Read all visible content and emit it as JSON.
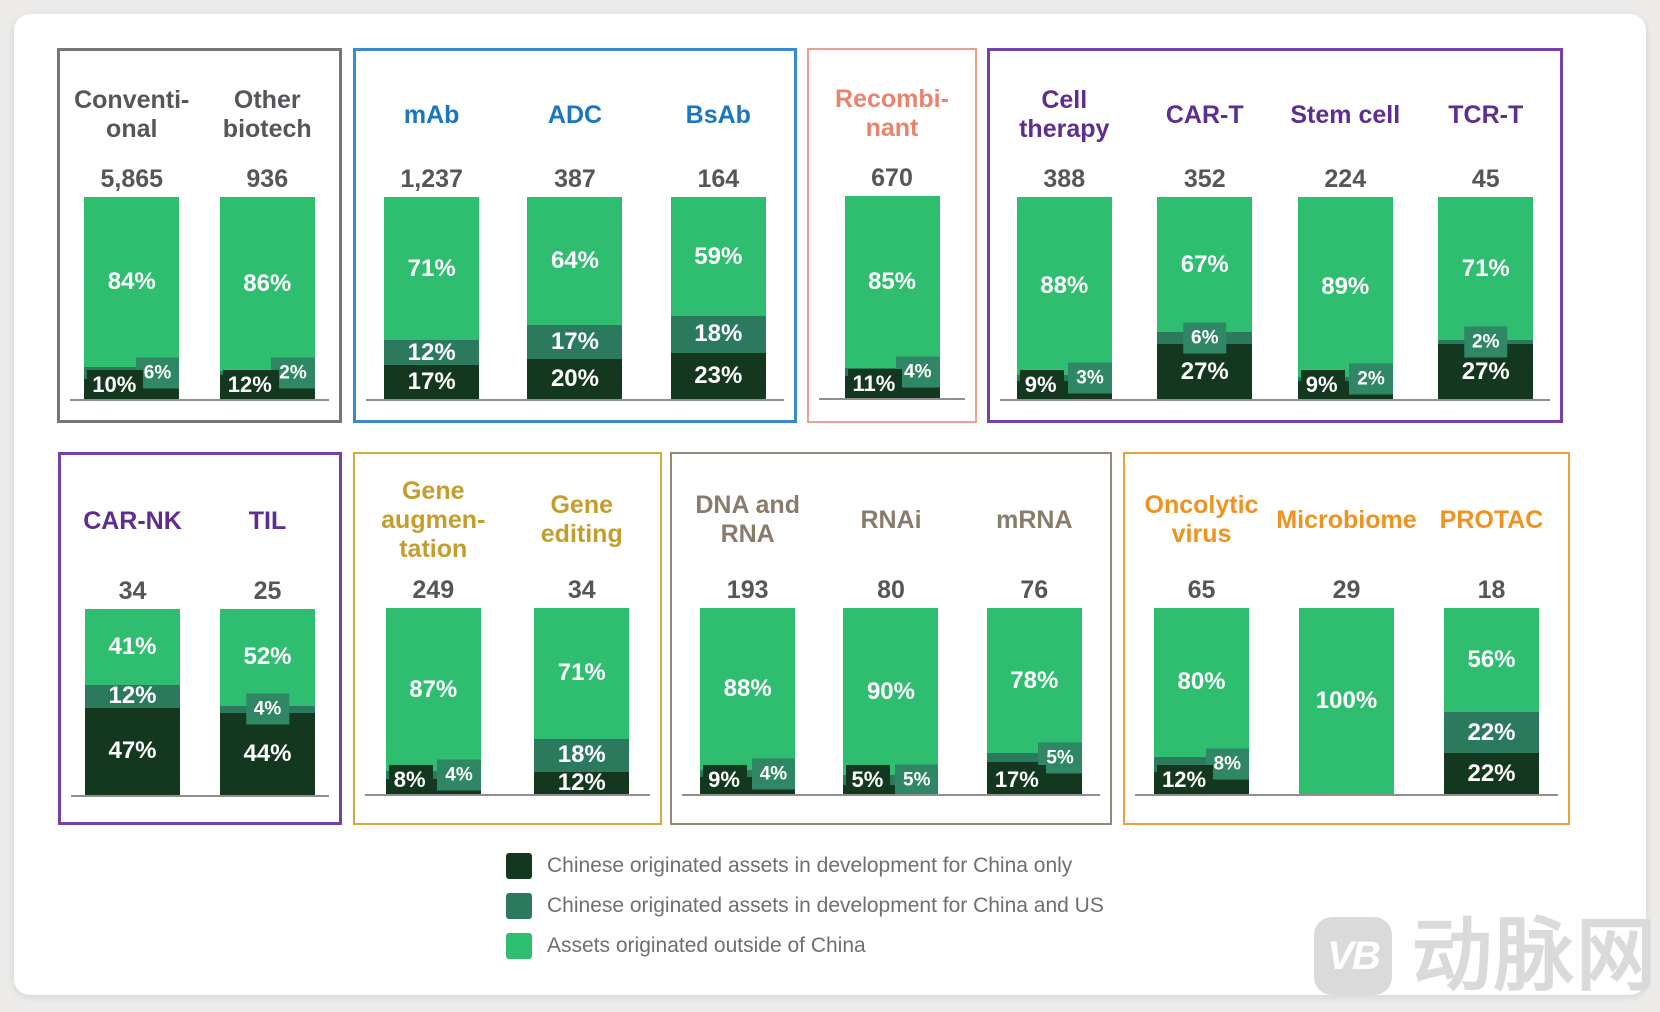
{
  "page": {
    "background": "#ECEBE9",
    "card_color": "#FFFFFF"
  },
  "legend": {
    "position": "bottom-left-of-center",
    "items": [
      {
        "series": "china_only",
        "label": "Chinese originated assets in development for China only",
        "color": "#14381F"
      },
      {
        "series": "china_and_us",
        "label": "Chinese originated assets in development for China and US",
        "color": "#2C7A5E"
      },
      {
        "series": "outside_china",
        "label": "Assets originated outside of China",
        "color": "#2FBE70"
      }
    ]
  },
  "watermark": {
    "logo_text": "VB",
    "brand_text": "动脉网"
  },
  "chart_data": {
    "type": "bar",
    "stacked": true,
    "unit": "percent",
    "value_suffix": "%",
    "note": "Each bar = 100% split across three series; number above bar = total asset count",
    "series": [
      {
        "key": "china_only",
        "label": "Chinese originated assets in development for China only",
        "color": "#14381F"
      },
      {
        "key": "china_and_us",
        "label": "Chinese originated assets in development for China and US",
        "color": "#2C7A5E"
      },
      {
        "key": "outside_china",
        "label": "Assets originated outside of China",
        "color": "#2FBE70"
      }
    ],
    "colors": {
      "light": "#2FBE70",
      "mid": "#2C7A5E",
      "dark": "#14381F",
      "chip_mid": "#2F8766"
    },
    "groups": [
      {
        "id": "conventional-other",
        "accent": "#55565A",
        "border": "#75767A",
        "bars": [
          {
            "title": [
              "Conventi-",
              "onal"
            ],
            "total": "5,865",
            "values": {
              "outside_china": 84,
              "china_and_us": 6,
              "china_only": 10
            },
            "mid_label": "chip",
            "dark_label": "corner"
          },
          {
            "title": [
              "Other",
              "biotech"
            ],
            "total": "936",
            "values": {
              "outside_china": 86,
              "china_and_us": 2,
              "china_only": 12
            },
            "mid_label": "chip",
            "dark_label": "corner"
          }
        ]
      },
      {
        "id": "antibodies",
        "accent": "#1B75C0",
        "border": "#3B88CB",
        "bars": [
          {
            "title": [
              "mAb"
            ],
            "total": "1,237",
            "values": {
              "outside_china": 71,
              "china_and_us": 12,
              "china_only": 17
            },
            "mid_label": "in",
            "dark_label": "in"
          },
          {
            "title": [
              "ADC"
            ],
            "total": "387",
            "values": {
              "outside_china": 64,
              "china_and_us": 17,
              "china_only": 20
            },
            "mid_label": "in",
            "dark_label": "in"
          },
          {
            "title": [
              "BsAb"
            ],
            "total": "164",
            "values": {
              "outside_china": 59,
              "china_and_us": 18,
              "china_only": 23
            },
            "mid_label": "in",
            "dark_label": "in"
          }
        ]
      },
      {
        "id": "recombinant",
        "accent": "#E8836E",
        "border": "#ECA18F",
        "bars": [
          {
            "title": [
              "Recombi-",
              "nant"
            ],
            "total": "670",
            "values": {
              "outside_china": 85,
              "china_and_us": 4,
              "china_only": 11
            },
            "mid_label": "chip",
            "dark_label": "corner"
          }
        ]
      },
      {
        "id": "cell-therapy",
        "accent": "#5E2D91",
        "border": "#7642A8",
        "bars": [
          {
            "title": [
              "Cell",
              "therapy"
            ],
            "total": "388",
            "values": {
              "outside_china": 88,
              "china_and_us": 3,
              "china_only": 9
            },
            "mid_label": "chip",
            "dark_label": "corner"
          },
          {
            "title": [
              "CAR-T"
            ],
            "total": "352",
            "values": {
              "outside_china": 67,
              "china_and_us": 6,
              "china_only": 27
            },
            "mid_label": "chip",
            "dark_label": "in"
          },
          {
            "title": [
              "Stem cell"
            ],
            "total": "224",
            "values": {
              "outside_china": 89,
              "china_and_us": 2,
              "china_only": 9
            },
            "mid_label": "chip",
            "dark_label": "corner"
          },
          {
            "title": [
              "TCR-T"
            ],
            "total": "45",
            "values": {
              "outside_china": 71,
              "china_and_us": 2,
              "china_only": 27
            },
            "mid_label": "chip",
            "dark_label": "in"
          }
        ]
      },
      {
        "id": "car-nk-til",
        "accent": "#5E2D91",
        "border": "#7642A8",
        "bars": [
          {
            "title": [
              "CAR-NK"
            ],
            "total": "34",
            "values": {
              "outside_china": 41,
              "china_and_us": 12,
              "china_only": 47
            },
            "mid_label": "in",
            "dark_label": "in"
          },
          {
            "title": [
              "TIL"
            ],
            "total": "25",
            "values": {
              "outside_china": 52,
              "china_and_us": 4,
              "china_only": 44
            },
            "mid_label": "chip",
            "dark_label": "in"
          }
        ]
      },
      {
        "id": "gene-therapy",
        "accent": "#C49D2A",
        "border": "#D2AC3B",
        "bars": [
          {
            "title": [
              "Gene",
              "augmen-",
              "tation"
            ],
            "total": "249",
            "values": {
              "outside_china": 87,
              "china_and_us": 4,
              "china_only": 8
            },
            "mid_label": "chip",
            "dark_label": "corner"
          },
          {
            "title": [
              "Gene",
              "editing"
            ],
            "total": "34",
            "values": {
              "outside_china": 71,
              "china_and_us": 18,
              "china_only": 12
            },
            "mid_label": "in",
            "dark_label": "in"
          }
        ]
      },
      {
        "id": "nucleic-acid",
        "accent": "#8A7C6C",
        "border": "#95897C",
        "bars": [
          {
            "title": [
              "DNA and",
              "RNA"
            ],
            "total": "193",
            "values": {
              "outside_china": 88,
              "china_and_us": 4,
              "china_only": 9
            },
            "mid_label": "chip",
            "dark_label": "corner"
          },
          {
            "title": [
              "RNAi"
            ],
            "total": "80",
            "values": {
              "outside_china": 90,
              "china_and_us": 5,
              "china_only": 5
            },
            "mid_label": "chip",
            "dark_label": "corner"
          },
          {
            "title": [
              "mRNA"
            ],
            "total": "76",
            "values": {
              "outside_china": 78,
              "china_and_us": 5,
              "china_only": 17
            },
            "mid_label": "chip",
            "dark_label": "corner"
          }
        ]
      },
      {
        "id": "other-modalities",
        "accent": "#F0921E",
        "border": "#EBA03F",
        "bars": [
          {
            "title": [
              "Oncolytic",
              "virus"
            ],
            "total": "65",
            "values": {
              "outside_china": 80,
              "china_and_us": 8,
              "china_only": 12
            },
            "mid_label": "chip",
            "dark_label": "corner"
          },
          {
            "title": [
              "Microbiome"
            ],
            "total": "29",
            "values": {
              "outside_china": 100,
              "china_and_us": 0,
              "china_only": 0
            },
            "mid_label": "none",
            "dark_label": "none"
          },
          {
            "title": [
              "PROTAC"
            ],
            "total": "18",
            "values": {
              "outside_china": 56,
              "china_and_us": 22,
              "china_only": 22
            },
            "mid_label": "in",
            "dark_label": "in"
          }
        ]
      }
    ]
  }
}
